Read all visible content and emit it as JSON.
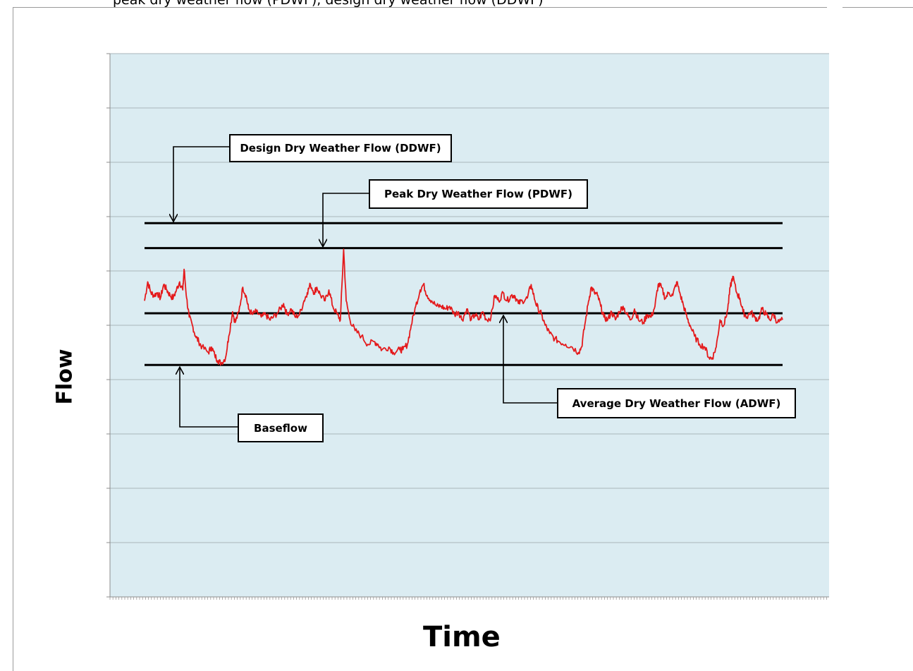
{
  "caption": "peak dry weather flow (PDWF), design dry weather flow (DDWF)",
  "colors": {
    "plot_bg": "#dbecf2",
    "grid": "#a8b6bb",
    "series": "#e41a1c",
    "reference_lines": "#000000"
  },
  "chart_data": {
    "type": "line",
    "title": "",
    "xlabel": "Time",
    "ylabel": "Flow",
    "ylim": [
      0,
      10
    ],
    "xlim": [
      0,
      100
    ],
    "grid": true,
    "tick_labels": false,
    "reference_lines": [
      {
        "label": "Design Dry Weather Flow (DDWF)",
        "y": 6.88
      },
      {
        "label": "Peak Dry Weather Flow (PDWF)",
        "y": 6.42
      },
      {
        "label": "Average Dry Weather Flow (ADWF)",
        "y": 5.22
      },
      {
        "label": "Baseflow",
        "y": 4.27
      }
    ],
    "series": [
      {
        "values": [
          [
            0,
            5.45
          ],
          [
            0.5,
            5.8
          ],
          [
            1,
            5.6
          ],
          [
            1.5,
            5.55
          ],
          [
            2,
            5.6
          ],
          [
            2.5,
            5.5
          ],
          [
            3,
            5.75
          ],
          [
            3.5,
            5.65
          ],
          [
            4,
            5.55
          ],
          [
            4.5,
            5.5
          ],
          [
            5,
            5.65
          ],
          [
            5.5,
            5.8
          ],
          [
            6,
            5.65
          ],
          [
            6.2,
            6.03
          ],
          [
            6.6,
            5.5
          ],
          [
            7,
            5.15
          ],
          [
            7.5,
            5.0
          ],
          [
            8,
            4.8
          ],
          [
            8.5,
            4.7
          ],
          [
            9,
            4.6
          ],
          [
            10,
            4.5
          ],
          [
            10.5,
            4.6
          ],
          [
            11,
            4.45
          ],
          [
            11.5,
            4.35
          ],
          [
            12,
            4.3
          ],
          [
            12.7,
            4.4
          ],
          [
            13.2,
            4.8
          ],
          [
            13.8,
            5.25
          ],
          [
            14.2,
            5.05
          ],
          [
            14.8,
            5.25
          ],
          [
            15.4,
            5.7
          ],
          [
            15.9,
            5.55
          ],
          [
            16.3,
            5.3
          ],
          [
            16.9,
            5.2
          ],
          [
            17.5,
            5.25
          ],
          [
            18.3,
            5.15
          ],
          [
            19,
            5.2
          ],
          [
            19.6,
            5.1
          ],
          [
            20.2,
            5.15
          ],
          [
            21,
            5.25
          ],
          [
            21.8,
            5.4
          ],
          [
            22.3,
            5.2
          ],
          [
            23,
            5.3
          ],
          [
            23.6,
            5.15
          ],
          [
            24.3,
            5.2
          ],
          [
            25,
            5.45
          ],
          [
            25.5,
            5.6
          ],
          [
            26,
            5.75
          ],
          [
            26.6,
            5.6
          ],
          [
            27,
            5.7
          ],
          [
            27.6,
            5.55
          ],
          [
            28.3,
            5.45
          ],
          [
            28.9,
            5.65
          ],
          [
            29.5,
            5.35
          ],
          [
            30.2,
            5.2
          ],
          [
            30.7,
            5.1
          ],
          [
            31.2,
            6.4
          ],
          [
            31.6,
            5.45
          ],
          [
            32.2,
            5.1
          ],
          [
            33,
            4.9
          ],
          [
            34,
            4.8
          ],
          [
            35,
            4.65
          ],
          [
            36,
            4.7
          ],
          [
            36.6,
            4.65
          ],
          [
            37.2,
            4.55
          ],
          [
            38.3,
            4.6
          ],
          [
            39,
            4.5
          ],
          [
            40,
            4.55
          ],
          [
            40.5,
            4.55
          ],
          [
            41.2,
            4.65
          ],
          [
            41.8,
            5.0
          ],
          [
            42.5,
            5.35
          ],
          [
            43.2,
            5.65
          ],
          [
            43.7,
            5.75
          ],
          [
            44.3,
            5.55
          ],
          [
            45,
            5.45
          ],
          [
            45.8,
            5.35
          ],
          [
            46.5,
            5.35
          ],
          [
            47.2,
            5.3
          ],
          [
            47.8,
            5.35
          ],
          [
            48.6,
            5.2
          ],
          [
            49.2,
            5.25
          ],
          [
            49.8,
            5.1
          ],
          [
            50.5,
            5.3
          ],
          [
            51.2,
            5.1
          ],
          [
            51.8,
            5.2
          ],
          [
            52.4,
            5.1
          ],
          [
            53,
            5.25
          ],
          [
            53.6,
            5.1
          ],
          [
            54.3,
            5.15
          ],
          [
            54.9,
            5.55
          ],
          [
            55.5,
            5.45
          ],
          [
            56.2,
            5.6
          ],
          [
            56.8,
            5.45
          ],
          [
            57.5,
            5.55
          ],
          [
            58,
            5.55
          ],
          [
            58.6,
            5.4
          ],
          [
            59.2,
            5.45
          ],
          [
            60,
            5.5
          ],
          [
            60.6,
            5.75
          ],
          [
            61.2,
            5.45
          ],
          [
            61.7,
            5.3
          ],
          [
            62.2,
            5.2
          ],
          [
            62.8,
            5.0
          ],
          [
            63.5,
            4.85
          ],
          [
            64.3,
            4.75
          ],
          [
            65,
            4.7
          ],
          [
            66,
            4.65
          ],
          [
            67,
            4.6
          ],
          [
            68,
            4.5
          ],
          [
            68.5,
            4.6
          ],
          [
            69,
            5.0
          ],
          [
            69.6,
            5.45
          ],
          [
            70,
            5.7
          ],
          [
            70.5,
            5.6
          ],
          [
            71,
            5.55
          ],
          [
            71.5,
            5.35
          ],
          [
            72,
            5.15
          ],
          [
            72.6,
            5.1
          ],
          [
            73.2,
            5.25
          ],
          [
            73.8,
            5.1
          ],
          [
            74.4,
            5.25
          ],
          [
            75,
            5.35
          ],
          [
            75.6,
            5.2
          ],
          [
            76.2,
            5.1
          ],
          [
            76.8,
            5.3
          ],
          [
            77.4,
            5.1
          ],
          [
            78.2,
            5.05
          ],
          [
            78.8,
            5.2
          ],
          [
            79.4,
            5.15
          ],
          [
            80,
            5.35
          ],
          [
            80.5,
            5.75
          ],
          [
            81,
            5.7
          ],
          [
            81.6,
            5.5
          ],
          [
            82.2,
            5.6
          ],
          [
            82.8,
            5.55
          ],
          [
            83.4,
            5.8
          ],
          [
            84,
            5.55
          ],
          [
            84.5,
            5.35
          ],
          [
            85,
            5.15
          ],
          [
            85.5,
            5.0
          ],
          [
            86.2,
            4.8
          ],
          [
            87,
            4.65
          ],
          [
            87.8,
            4.6
          ],
          [
            88.5,
            4.4
          ],
          [
            89,
            4.4
          ],
          [
            89.6,
            4.6
          ],
          [
            90.2,
            5.1
          ],
          [
            90.8,
            5.0
          ],
          [
            91.4,
            5.3
          ],
          [
            91.8,
            5.7
          ],
          [
            92.2,
            5.9
          ],
          [
            92.8,
            5.6
          ],
          [
            93.3,
            5.5
          ],
          [
            93.8,
            5.25
          ],
          [
            94.4,
            5.15
          ],
          [
            95,
            5.25
          ],
          [
            95.6,
            5.15
          ],
          [
            96.2,
            5.1
          ],
          [
            96.8,
            5.3
          ],
          [
            97.4,
            5.2
          ],
          [
            98,
            5.1
          ],
          [
            98.6,
            5.2
          ],
          [
            99.2,
            5.05
          ],
          [
            100,
            5.1
          ]
        ]
      }
    ]
  }
}
